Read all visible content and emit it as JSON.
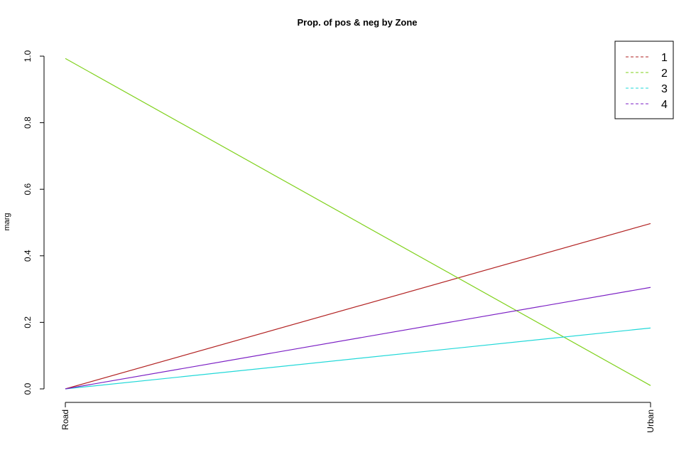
{
  "chart_data": {
    "type": "line",
    "title": "Prop. of pos & neg by Zone",
    "xlabel": "",
    "ylabel": "marg",
    "categories": [
      "Road",
      "Urban"
    ],
    "ylim": [
      0,
      1
    ],
    "yticks": [
      "0.0",
      "0.2",
      "0.4",
      "0.6",
      "0.8",
      "1.0"
    ],
    "grid": false,
    "legend_position": "top-right",
    "series": [
      {
        "name": "1",
        "color": "#b22222",
        "values": [
          0.0,
          0.497
        ]
      },
      {
        "name": "2",
        "color": "#7fd11b",
        "values": [
          0.993,
          0.01
        ]
      },
      {
        "name": "3",
        "color": "#21d8d8",
        "values": [
          0.0,
          0.183
        ]
      },
      {
        "name": "4",
        "color": "#7b1fc4",
        "values": [
          0.0,
          0.305
        ]
      }
    ]
  }
}
